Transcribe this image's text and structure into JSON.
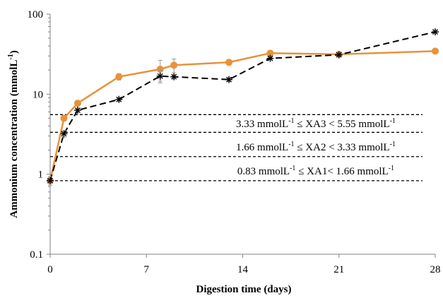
{
  "chart_data": {
    "type": "line",
    "xlabel": "Digestion time (days)",
    "ylabel": "Ammonium concentration (mmolL",
    "ylabel_sup": "-1",
    "ylabel_close": ")",
    "yscale": "log",
    "xlim": [
      0,
      28
    ],
    "ylim": [
      0.1,
      100
    ],
    "xticks": [
      "0",
      "7",
      "14",
      "21",
      "28"
    ],
    "yticks": [
      "0.1",
      "1",
      "10",
      "100"
    ],
    "series": [
      {
        "color": "#E8923A",
        "marker": "circle",
        "line_style": "solid",
        "x": [
          0,
          1,
          2,
          5,
          8,
          9,
          13,
          16,
          21,
          28
        ],
        "y": [
          0.83,
          5.0,
          7.7,
          16.5,
          20.5,
          23.0,
          25.0,
          32.5,
          31.5,
          34.5
        ],
        "error": [
          0.1,
          0.4,
          0.5,
          1.5,
          6.0,
          4.5,
          2.0,
          1.8,
          1.5,
          1.5
        ]
      },
      {
        "color": "#000000",
        "marker": "asterisk",
        "line_style": "dashed",
        "x": [
          0,
          1,
          2,
          5,
          8,
          9,
          13,
          16,
          21,
          28
        ],
        "y": [
          0.83,
          3.2,
          6.3,
          8.6,
          16.8,
          16.5,
          15.2,
          28.0,
          31.0,
          60.0
        ],
        "error": [
          0.1,
          0.3,
          0.3,
          0.4,
          3.0,
          1.0,
          0.8,
          1.0,
          1.0,
          2.0
        ]
      }
    ],
    "threshold_lines": [
      5.55,
      3.33,
      1.66,
      0.83
    ],
    "annotations": [
      {
        "prefix": "3.33 mmolL",
        "sup1": "-1",
        "middle": " ≤ XA3 < 5.55 mmolL",
        "sup2": "-1",
        "y": 4.3
      },
      {
        "prefix": "1.66 mmolL",
        "sup1": "-1",
        "middle": " ≤ XA2 < 3.33 mmolL",
        "sup2": "-1",
        "y": 2.2
      },
      {
        "prefix": "0.83 mmolL",
        "sup1": "-1",
        "middle": " ≤ XA1< 1.66 mmolL",
        "sup2": "-1",
        "y": 1.1
      }
    ],
    "grid": false,
    "legend": "none"
  }
}
